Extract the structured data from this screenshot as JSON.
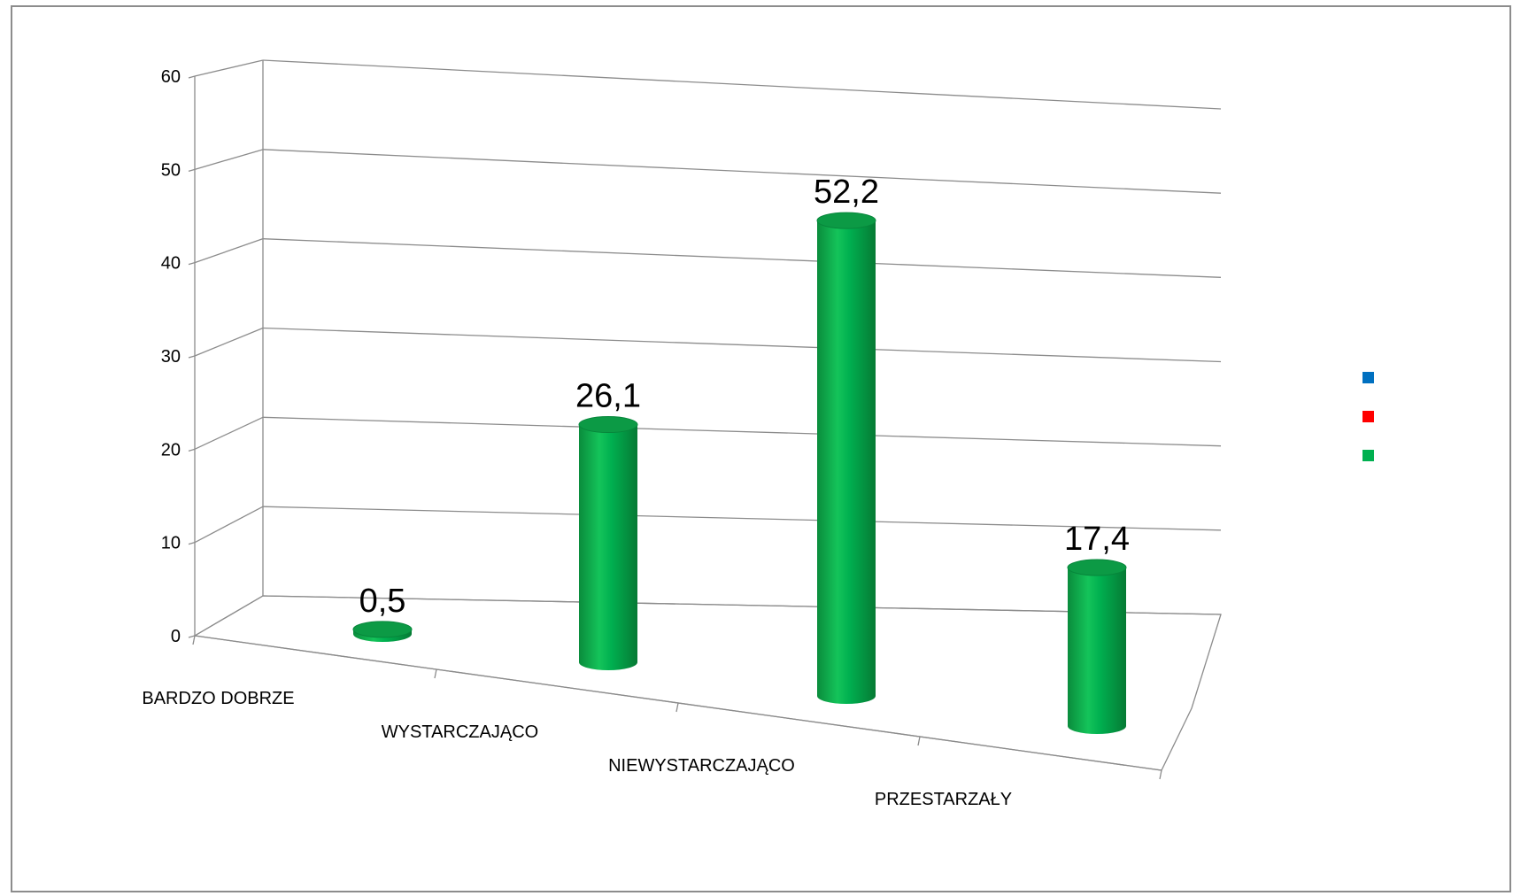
{
  "chart_data": {
    "type": "bar",
    "style": "3d-cylinder",
    "categories": [
      "BARDZO DOBRZE",
      "WYSTARCZAJĄCO",
      "NIEWYSTARCZAJĄCO",
      "PRZESTARZAŁY"
    ],
    "series": [
      {
        "name": "",
        "color": "#00b050",
        "values": [
          0.5,
          26.1,
          52.2,
          17.4
        ]
      }
    ],
    "data_labels": [
      "0,5",
      "26,1",
      "52,2",
      "17,4"
    ],
    "y_ticks": [
      0,
      10,
      20,
      30,
      40,
      50,
      60
    ],
    "y_tick_labels": [
      "0",
      "10",
      "20",
      "30",
      "40",
      "50",
      "60"
    ],
    "ylim": [
      0,
      60
    ],
    "grid": true,
    "title": "",
    "xlabel": "",
    "ylabel": "",
    "legend": {
      "position": "right",
      "entries": [
        {
          "name": "",
          "color": "#0070c0"
        },
        {
          "name": "",
          "color": "#ff0000"
        },
        {
          "name": "",
          "color": "#00b050"
        }
      ]
    }
  }
}
